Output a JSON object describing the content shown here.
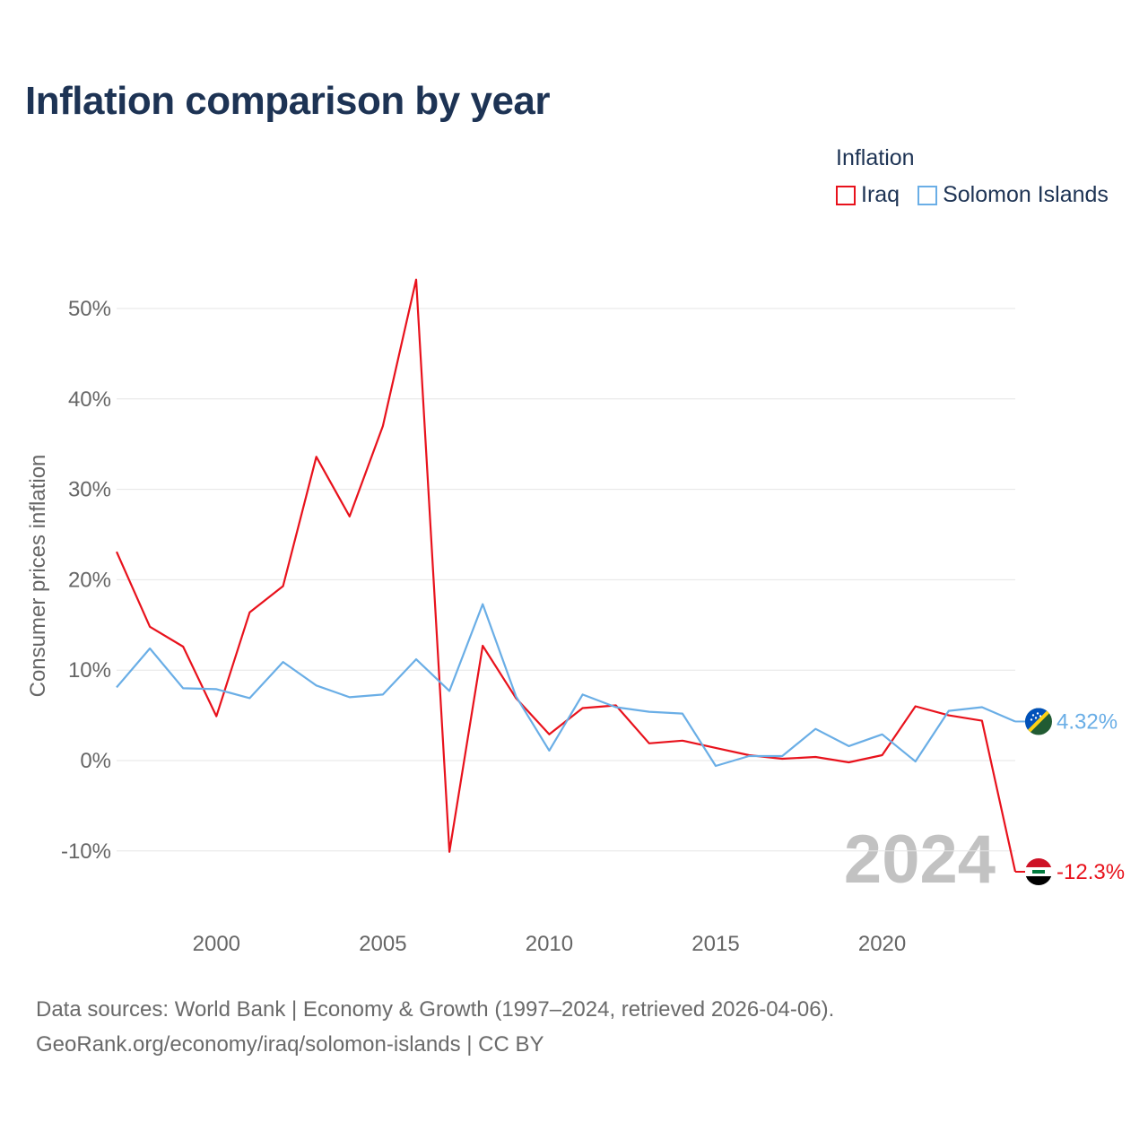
{
  "chart_data": {
    "type": "line",
    "title": "Inflation comparison by year",
    "legend_title": "Inflation",
    "legend_position": "top-right",
    "ylabel": "Consumer prices inflation",
    "xlabel": "",
    "ylim": [
      -13,
      55
    ],
    "xlim": [
      1997,
      2024
    ],
    "yticks": [
      -10,
      0,
      10,
      20,
      30,
      40,
      50
    ],
    "ytick_labels": [
      "-10%",
      "0%",
      "10%",
      "20%",
      "30%",
      "40%",
      "50%"
    ],
    "xticks": [
      2000,
      2005,
      2010,
      2015,
      2020
    ],
    "xtick_labels": [
      "2000",
      "2005",
      "2010",
      "2015",
      "2020"
    ],
    "grid": true,
    "year_watermark": "2024",
    "x": [
      1997,
      1998,
      1999,
      2000,
      2001,
      2002,
      2003,
      2004,
      2005,
      2006,
      2007,
      2008,
      2009,
      2010,
      2011,
      2012,
      2013,
      2014,
      2015,
      2016,
      2017,
      2018,
      2019,
      2020,
      2021,
      2022,
      2023,
      2024
    ],
    "series": [
      {
        "name": "Iraq",
        "color": "#e8121c",
        "end_label": "-12.3%",
        "values": [
          23.1,
          14.8,
          12.6,
          4.9,
          16.4,
          19.3,
          33.6,
          27.0,
          37.0,
          53.2,
          -10.1,
          12.7,
          6.9,
          2.9,
          5.8,
          6.1,
          1.9,
          2.2,
          1.4,
          0.6,
          0.2,
          0.4,
          -0.2,
          0.6,
          6.0,
          5.0,
          4.4,
          -12.3
        ]
      },
      {
        "name": "Solomon Islands",
        "color": "#6aaee6",
        "end_label": "4.32%",
        "values": [
          8.1,
          12.4,
          8.0,
          7.9,
          6.9,
          10.9,
          8.3,
          7.0,
          7.3,
          11.2,
          7.7,
          17.3,
          7.1,
          1.1,
          7.3,
          5.9,
          5.4,
          5.2,
          -0.6,
          0.5,
          0.5,
          3.5,
          1.6,
          2.9,
          -0.1,
          5.5,
          5.9,
          4.32
        ]
      }
    ]
  },
  "source": {
    "line1": "Data sources: World Bank | Economy & Growth (1997–2024, retrieved 2026-04-06).",
    "line2": "GeoRank.org/economy/iraq/solomon-islands | CC BY"
  }
}
